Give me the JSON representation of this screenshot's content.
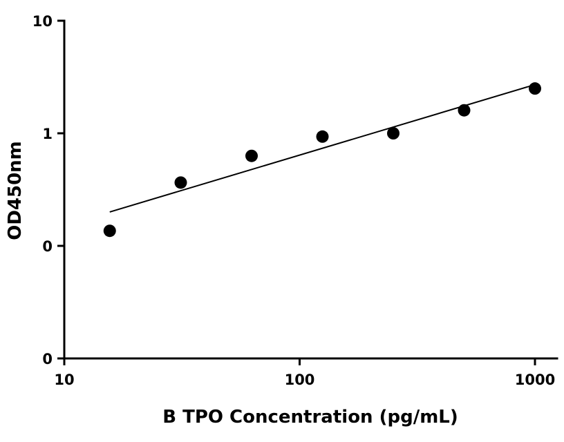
{
  "chart_data": {
    "type": "scatter",
    "title": "",
    "xlabel": "B TPO Concentration (pg/mL)",
    "ylabel": "OD450nm",
    "x_scale": "log",
    "y_scale": "log",
    "xlim": [
      10,
      1000
    ],
    "ylim": [
      0.01,
      10
    ],
    "x_ticks": [
      {
        "value": 10,
        "label": "10"
      },
      {
        "value": 100,
        "label": "100"
      },
      {
        "value": 1000,
        "label": "1000"
      }
    ],
    "y_ticks": [
      {
        "value": 0.01,
        "label": "0"
      },
      {
        "value": 0.1,
        "label": "0"
      },
      {
        "value": 1,
        "label": "1"
      },
      {
        "value": 10,
        "label": "10"
      }
    ],
    "grid": false,
    "series": [
      {
        "x": [
          15.6,
          31.25,
          62.5,
          125,
          250,
          500,
          1000
        ],
        "y": [
          0.136,
          0.365,
          0.63,
          0.935,
          1.0,
          1.6,
          2.5
        ],
        "marker": "circle",
        "color": "#000000",
        "line": "fit"
      }
    ]
  }
}
